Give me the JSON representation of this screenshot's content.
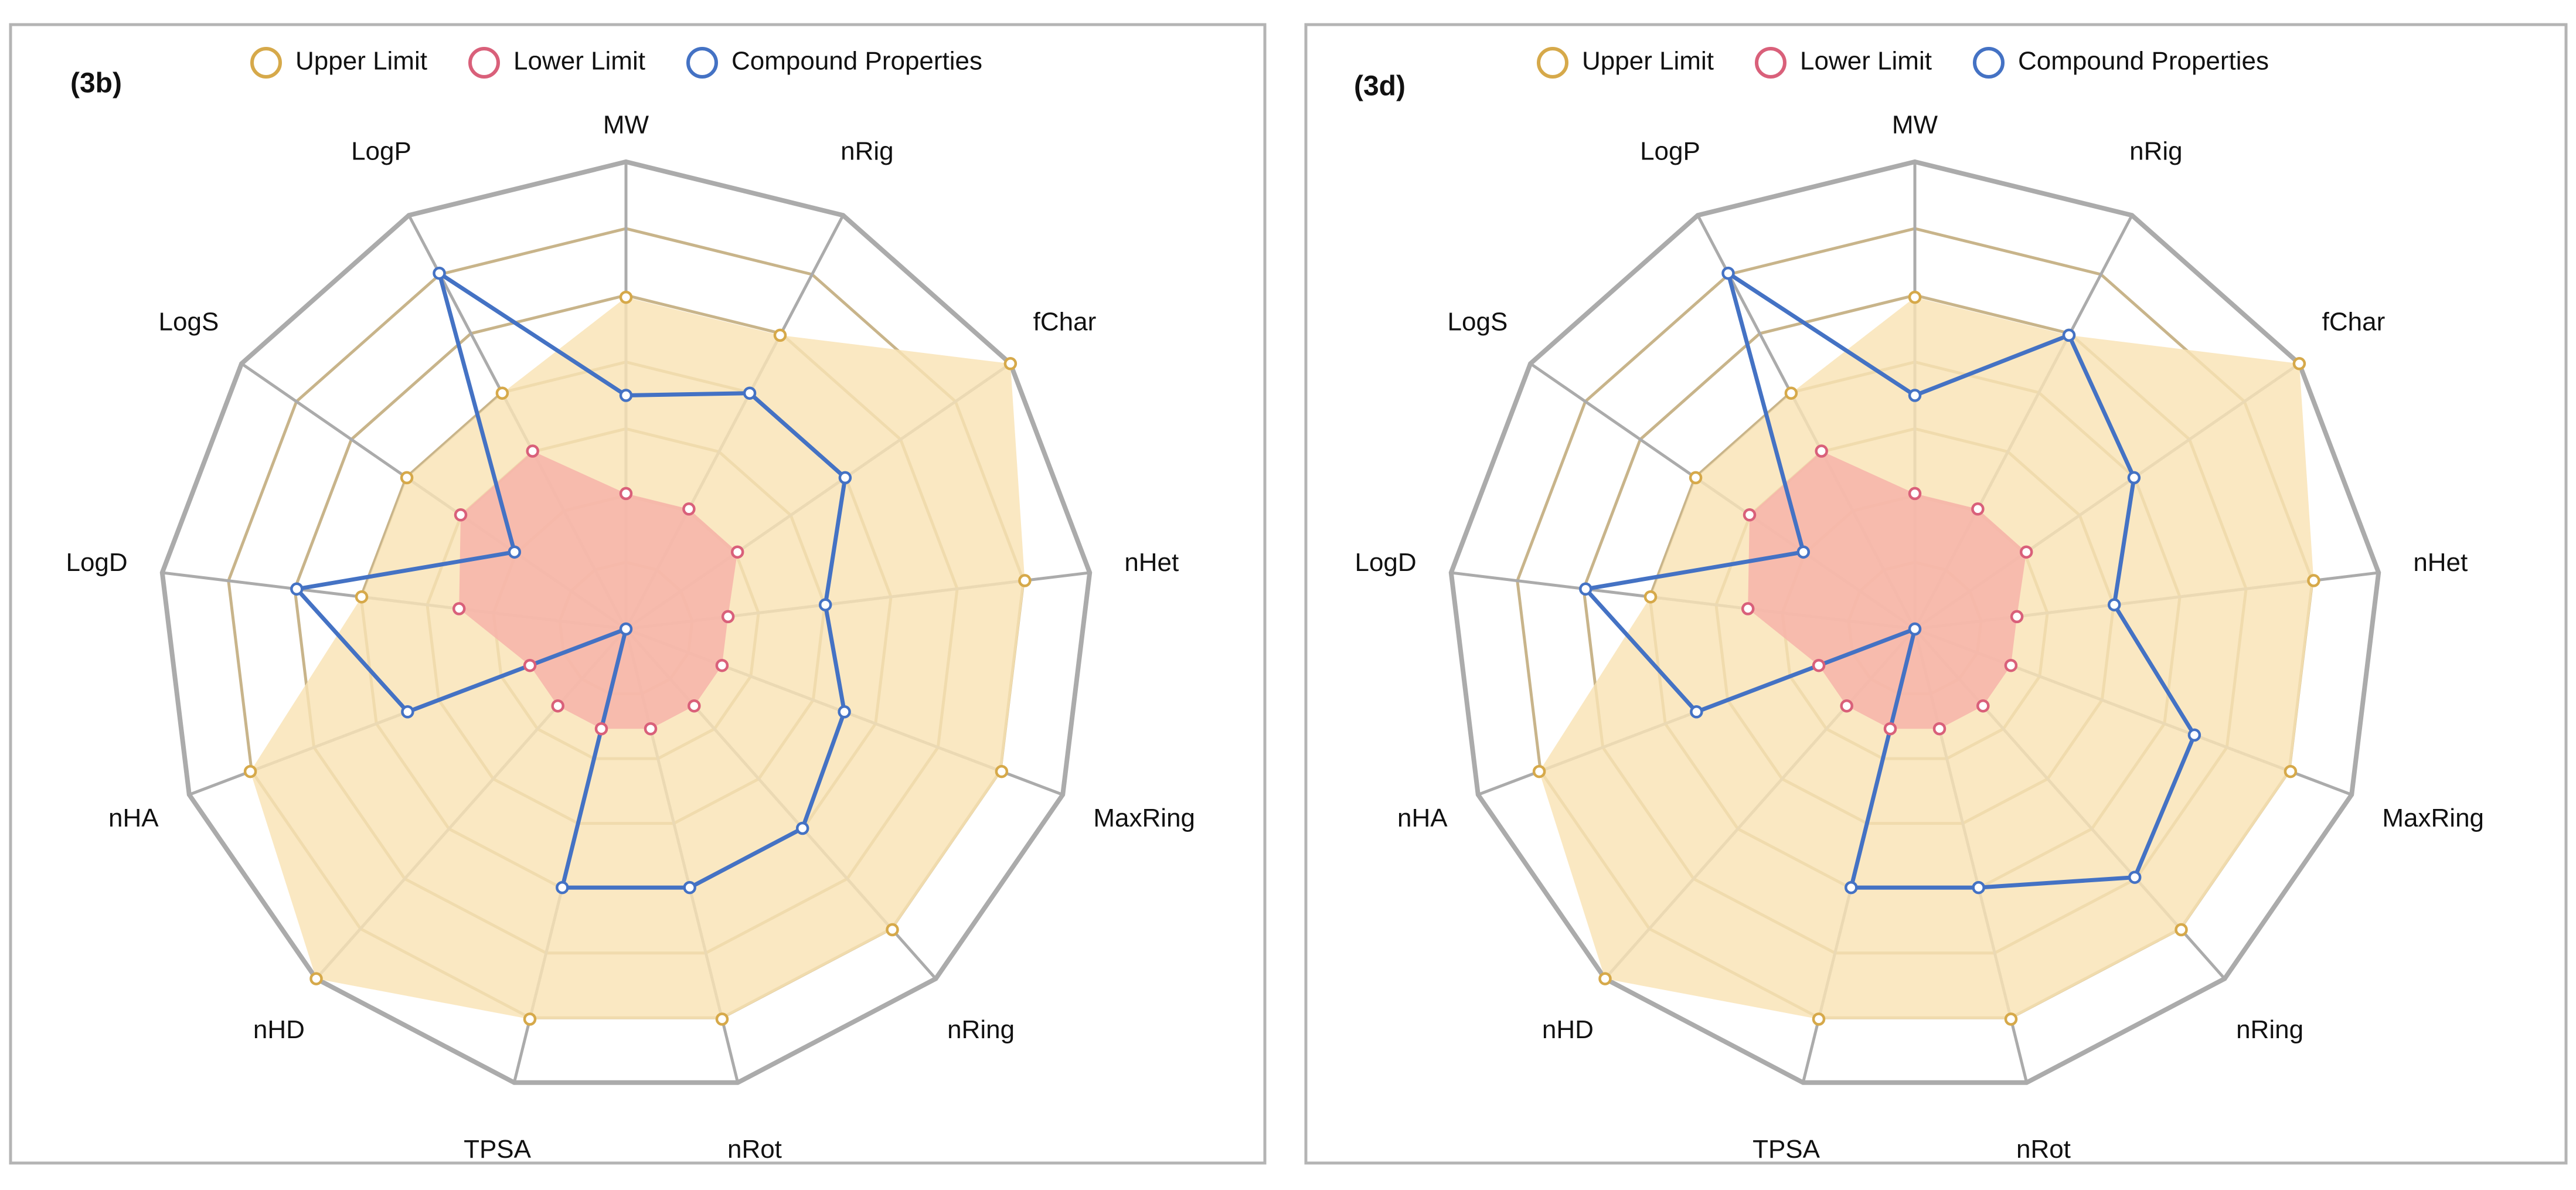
{
  "colors": {
    "upper_fill": "#f9e3b5",
    "upper_stroke": "#d6a94a",
    "lower_fill": "#f6b4aa",
    "lower_stroke": "#d9607a",
    "compound": "#4472c4",
    "grid_outer": "#ababab",
    "grid_inner": "#c8b48a",
    "frame": "#b4b4b4"
  },
  "chart_data": [
    {
      "type": "radar",
      "panel_label": "(3b)",
      "axes": [
        "MW",
        "nRig",
        "fChar",
        "nHet",
        "MaxRing",
        "nRing",
        "nRot",
        "TPSA",
        "nHD",
        "nHA",
        "LogD",
        "LogS",
        "LogP"
      ],
      "rings": 7,
      "rlim": [
        0,
        1
      ],
      "legend": [
        "Upper Limit",
        "Lower Limit",
        "Compound Properties"
      ],
      "series": [
        {
          "name": "Upper Limit",
          "values": [
            0.71,
            0.71,
            1.0,
            0.86,
            0.86,
            0.86,
            0.86,
            0.86,
            1.0,
            0.86,
            0.57,
            0.57,
            0.57
          ]
        },
        {
          "name": "Lower Limit",
          "values": [
            0.29,
            0.29,
            0.29,
            0.22,
            0.22,
            0.22,
            0.22,
            0.22,
            0.22,
            0.22,
            0.36,
            0.43,
            0.43
          ]
        },
        {
          "name": "Compound Properties",
          "values": [
            0.5,
            0.57,
            0.57,
            0.43,
            0.5,
            0.57,
            0.57,
            0.57,
            0.0,
            0.5,
            0.71,
            0.29,
            0.86
          ]
        }
      ]
    },
    {
      "type": "radar",
      "panel_label": "(3d)",
      "axes": [
        "MW",
        "nRig",
        "fChar",
        "nHet",
        "MaxRing",
        "nRing",
        "nRot",
        "TPSA",
        "nHD",
        "nHA",
        "LogD",
        "LogS",
        "LogP"
      ],
      "rings": 7,
      "rlim": [
        0,
        1
      ],
      "legend": [
        "Upper Limit",
        "Lower Limit",
        "Compound Properties"
      ],
      "series": [
        {
          "name": "Upper Limit",
          "values": [
            0.71,
            0.71,
            1.0,
            0.86,
            0.86,
            0.86,
            0.86,
            0.86,
            1.0,
            0.86,
            0.57,
            0.57,
            0.57
          ]
        },
        {
          "name": "Lower Limit",
          "values": [
            0.29,
            0.29,
            0.29,
            0.22,
            0.22,
            0.22,
            0.22,
            0.22,
            0.22,
            0.22,
            0.36,
            0.43,
            0.43
          ]
        },
        {
          "name": "Compound Properties",
          "values": [
            0.5,
            0.71,
            0.57,
            0.43,
            0.64,
            0.71,
            0.57,
            0.57,
            0.0,
            0.5,
            0.71,
            0.29,
            0.86
          ]
        }
      ]
    }
  ]
}
